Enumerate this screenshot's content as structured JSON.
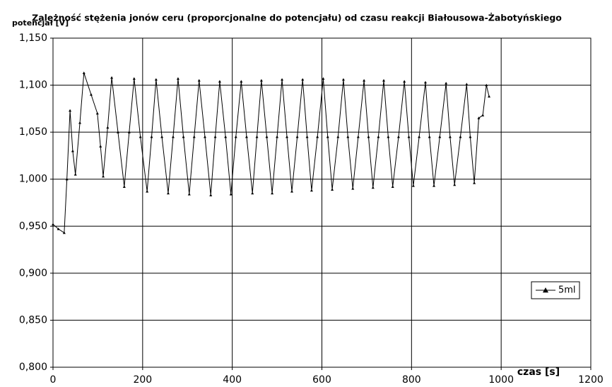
{
  "chart_data": {
    "type": "line",
    "title": "Zależność stężenia jonów ceru (proporcjonalne do potencjału) od czasu reakcji Białousowa-Żabotyńskiego",
    "x_label": "czas [s]",
    "y_label": "potencjał [V]",
    "x": [
      0,
      12,
      25,
      31,
      38,
      44,
      50,
      60,
      69,
      85,
      99,
      106,
      112,
      122,
      131,
      145,
      159,
      170,
      181,
      195,
      210,
      220,
      230,
      243,
      257,
      268,
      279,
      291,
      304,
      315,
      326,
      339,
      352,
      362,
      372,
      385,
      397,
      408,
      420,
      432,
      445,
      455,
      465,
      477,
      489,
      500,
      511,
      522,
      533,
      545,
      557,
      567,
      577,
      590,
      603,
      613,
      623,
      636,
      648,
      658,
      669,
      681,
      694,
      704,
      714,
      726,
      738,
      748,
      758,
      771,
      784,
      794,
      804,
      817,
      831,
      840,
      850,
      863,
      877,
      886,
      896,
      909,
      923,
      931,
      940,
      950,
      959,
      967,
      973
    ],
    "series": [
      {
        "name": "5ml",
        "color": "#000000",
        "values": [
          0.952,
          0.947,
          0.943,
          1.0,
          1.073,
          1.03,
          1.005,
          1.06,
          1.113,
          1.09,
          1.07,
          1.035,
          1.003,
          1.055,
          1.108,
          1.05,
          0.992,
          1.05,
          1.107,
          1.045,
          0.987,
          1.045,
          1.106,
          1.045,
          0.985,
          1.045,
          1.107,
          1.045,
          0.984,
          1.045,
          1.105,
          1.045,
          0.983,
          1.045,
          1.104,
          1.045,
          0.984,
          1.045,
          1.104,
          1.045,
          0.985,
          1.045,
          1.105,
          1.045,
          0.985,
          1.045,
          1.106,
          1.045,
          0.987,
          1.045,
          1.106,
          1.045,
          0.988,
          1.045,
          1.107,
          1.045,
          0.989,
          1.045,
          1.106,
          1.045,
          0.99,
          1.045,
          1.105,
          1.045,
          0.991,
          1.045,
          1.105,
          1.045,
          0.992,
          1.045,
          1.104,
          1.045,
          0.993,
          1.045,
          1.103,
          1.045,
          0.993,
          1.045,
          1.102,
          1.045,
          0.994,
          1.045,
          1.101,
          1.045,
          0.996,
          1.065,
          1.068,
          1.1,
          1.088
        ]
      }
    ],
    "xlim": [
      0,
      1200
    ],
    "xticks": [
      0,
      200,
      400,
      600,
      800,
      1000,
      1200
    ],
    "ylim": [
      0.8,
      1.15
    ],
    "yticks": [
      {
        "value": 0.8,
        "label": "0,800"
      },
      {
        "value": 0.85,
        "label": "0,850"
      },
      {
        "value": 0.9,
        "label": "0,900"
      },
      {
        "value": 0.95,
        "label": "0,950"
      },
      {
        "value": 1.0,
        "label": "1,000"
      },
      {
        "value": 1.05,
        "label": "1,050"
      },
      {
        "value": 1.1,
        "label": "1,100"
      },
      {
        "value": 1.15,
        "label": "1,150"
      }
    ],
    "grid": true,
    "legend": "right"
  }
}
